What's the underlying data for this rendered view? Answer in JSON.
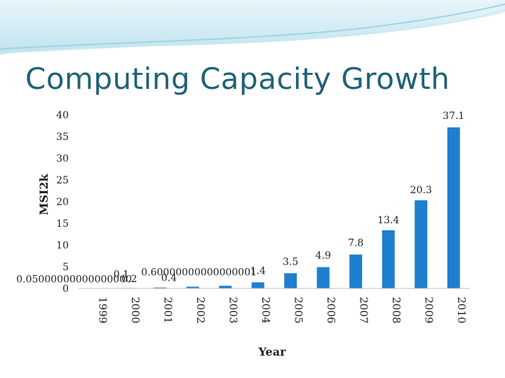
{
  "slide": {
    "title": "Computing Capacity Growth"
  },
  "colors": {
    "bar": "#1e7fd0",
    "title": "#1f6277",
    "banner_light": "#e9f6fa",
    "banner_dark": "#9fd3e2"
  },
  "chart_data": {
    "type": "bar",
    "title": "",
    "xlabel": "Year",
    "ylabel": "MSI2k",
    "ylim": [
      0,
      40
    ],
    "yticks": [
      0,
      5,
      10,
      15,
      20,
      25,
      30,
      35,
      40
    ],
    "grid": false,
    "legend": "none",
    "categories": [
      "1999",
      "2000",
      "2001",
      "2002",
      "2003",
      "2004",
      "2005",
      "2006",
      "2007",
      "2008",
      "2009",
      "2010"
    ],
    "values": [
      0.05,
      0.1,
      0.2,
      0.4,
      0.6,
      1.4,
      3.5,
      4.9,
      7.8,
      13.4,
      20.3,
      37.1
    ],
    "data_labels": [
      "0.05000000000000000",
      "0.1",
      "0.2",
      "0.4",
      "0.60000000000000001",
      "1.4",
      "3.5",
      "4.9",
      "7.8",
      "13.4",
      "20.3",
      "37.1"
    ]
  }
}
